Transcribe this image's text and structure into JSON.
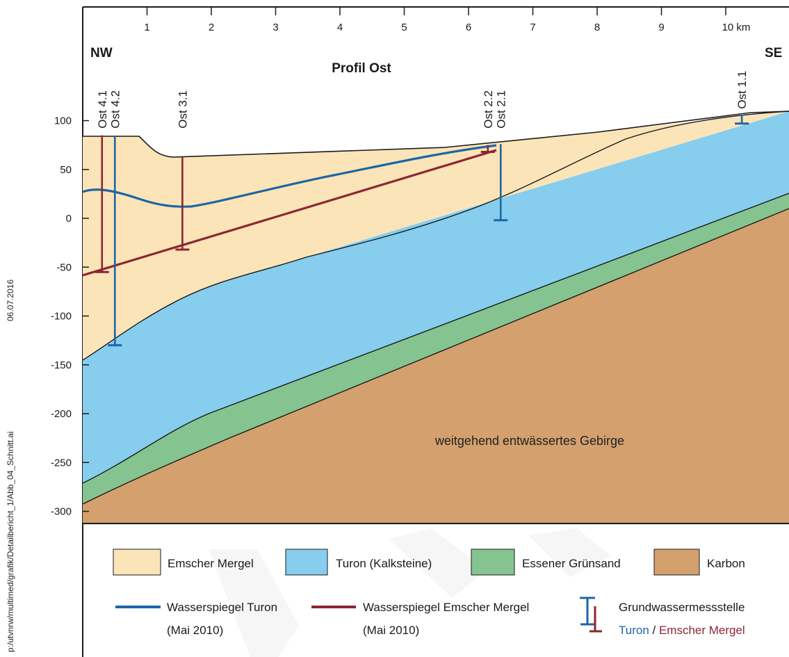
{
  "side": {
    "date": "06.07.2016",
    "path": "p:/utvnrw/multimed/grafik/Detailbericht_1/Abb_04_Schnitt.ai"
  },
  "profile": {
    "title": "Profil Ost",
    "left_label": "NW",
    "right_label": "SE",
    "km_ticks": [
      "1",
      "2",
      "3",
      "4",
      "5",
      "6",
      "7",
      "8",
      "9",
      "10 km"
    ],
    "elev_ticks": [
      "100",
      "50",
      "0",
      "-50",
      "-100",
      "-150",
      "-200",
      "-250",
      "-300"
    ],
    "area_label": "weitgehend entwässertes Gebirge",
    "wells": [
      {
        "name": "Ost 4.1",
        "type": "emscher",
        "km": 0.3,
        "top": 85,
        "bottom": -55
      },
      {
        "name": "Ost 4.2",
        "type": "turon",
        "km": 0.5,
        "top": 84,
        "bottom": -130
      },
      {
        "name": "Ost 3.1",
        "type": "emscher",
        "km": 1.55,
        "top": 63,
        "bottom": -32
      },
      {
        "name": "Ost 2.2",
        "type": "emscher",
        "km": 6.3,
        "top": 75,
        "bottom": 68
      },
      {
        "name": "Ost 2.1",
        "type": "turon",
        "km": 6.5,
        "top": 76,
        "bottom": -2
      },
      {
        "name": "Ost 1.1",
        "type": "turon",
        "km": 10.25,
        "top": 106,
        "bottom": 97
      }
    ]
  },
  "colors": {
    "emscher_mergel": "#fbe4b8",
    "turon": "#86cdee",
    "essener_gruensand": "#85c490",
    "karbon": "#d3a06e",
    "water_turon": "#1d66a7",
    "water_emscher": "#8c2633",
    "outline": "#1a1a1a"
  },
  "legend": {
    "emscher": "Emscher Mergel",
    "turon": "Turon (Kalksteine)",
    "gruensand": "Essener Grünsand",
    "karbon": "Karbon",
    "wl_turon_1": "Wasserspiegel Turon",
    "wl_turon_2": "(Mai 2010)",
    "wl_emscher_1": "Wasserspiegel Emscher Mergel",
    "wl_emscher_2": "(Mai 2010)",
    "well_title": "Grundwassermessstelle",
    "well_turon": "Turon",
    "well_sep": " / ",
    "well_emscher": "Emscher Mergel"
  }
}
